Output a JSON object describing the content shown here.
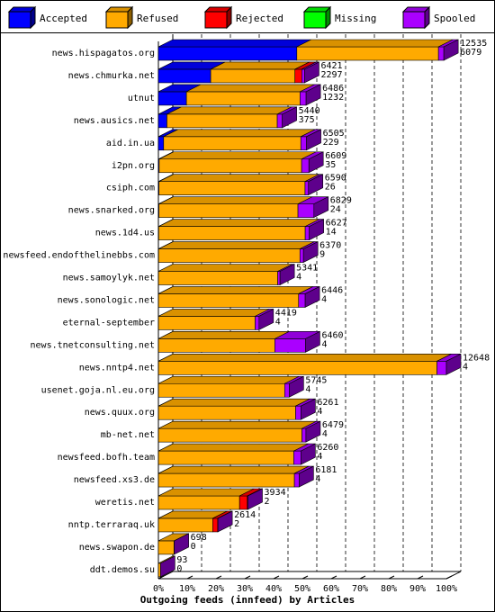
{
  "chart_data": {
    "type": "bar",
    "orientation": "horizontal",
    "stacked": true,
    "style": "3d",
    "xlabel": "Outgoing feeds (innfeed) by Articles",
    "x_ticks": [
      "0%",
      "10%",
      "20%",
      "30%",
      "40%",
      "50%",
      "60%",
      "70%",
      "80%",
      "90%",
      "100%"
    ],
    "grid": true,
    "legend_position": "top",
    "legend": [
      {
        "name": "Accepted",
        "color": "#0000ff"
      },
      {
        "name": "Refused",
        "color": "#ffaa00"
      },
      {
        "name": "Rejected",
        "color": "#ff0000"
      },
      {
        "name": "Missing",
        "color": "#00ff00"
      },
      {
        "name": "Spooled",
        "color": "#aa00ff"
      }
    ],
    "categories": [
      "news.hispagatos.org",
      "news.chmurka.net",
      "utnut",
      "news.ausics.net",
      "aid.in.ua",
      "i2pn.org",
      "csiph.com",
      "news.snarked.org",
      "news.1d4.us",
      "newsfeed.endofthelinebbs.com",
      "news.samoylyk.net",
      "news.sonologic.net",
      "eternal-september",
      "news.tnetconsulting.net",
      "news.nntp4.net",
      "usenet.goja.nl.eu.org",
      "news.quux.org",
      "mb-net.net",
      "newsfeed.bofh.team",
      "newsfeed.xs3.de",
      "weretis.net",
      "nntp.terraraq.uk",
      "news.swapon.de",
      "ddt.demos.su"
    ],
    "total_label": [
      12535,
      6421,
      6486,
      5440,
      6505,
      6609,
      6590,
      6829,
      6627,
      6370,
      5341,
      6446,
      4419,
      6460,
      12648,
      5745,
      6261,
      6479,
      6260,
      6181,
      3934,
      2614,
      698,
      93
    ],
    "accepted_label": [
      6079,
      2297,
      1232,
      375,
      229,
      35,
      26,
      24,
      14,
      9,
      4,
      4,
      4,
      4,
      4,
      4,
      4,
      4,
      4,
      4,
      2,
      2,
      0,
      0
    ],
    "series": [
      {
        "name": "Accepted",
        "color": "#0000ff",
        "values": [
          6079,
          2297,
          1232,
          375,
          229,
          35,
          26,
          24,
          14,
          9,
          4,
          4,
          4,
          4,
          4,
          4,
          4,
          4,
          4,
          4,
          2,
          2,
          0,
          0
        ]
      },
      {
        "name": "Refused",
        "color": "#ffaa00",
        "values": [
          6220,
          3700,
          4990,
          4845,
          6026,
          6254,
          6414,
          6105,
          6433,
          6207,
          5237,
          6152,
          4245,
          5110,
          12231,
          5541,
          6022,
          6301,
          5942,
          5969,
          3562,
          2382,
          690,
          92
        ]
      },
      {
        "name": "Rejected",
        "color": "#ff0000",
        "values": [
          0,
          300,
          0,
          0,
          0,
          0,
          0,
          0,
          0,
          0,
          0,
          0,
          0,
          0,
          0,
          0,
          0,
          0,
          0,
          0,
          340,
          220,
          0,
          0
        ]
      },
      {
        "name": "Missing",
        "color": "#00ff00",
        "values": [
          0,
          0,
          0,
          0,
          0,
          0,
          0,
          0,
          0,
          0,
          0,
          0,
          0,
          0,
          0,
          0,
          0,
          0,
          0,
          0,
          0,
          0,
          0,
          0
        ]
      },
      {
        "name": "Spooled",
        "color": "#aa00ff",
        "values": [
          236,
          124,
          264,
          220,
          250,
          320,
          150,
          700,
          180,
          154,
          100,
          290,
          170,
          1346,
          413,
          200,
          235,
          174,
          314,
          208,
          30,
          10,
          8,
          1
        ]
      }
    ],
    "xlim": [
      0,
      12648
    ]
  }
}
